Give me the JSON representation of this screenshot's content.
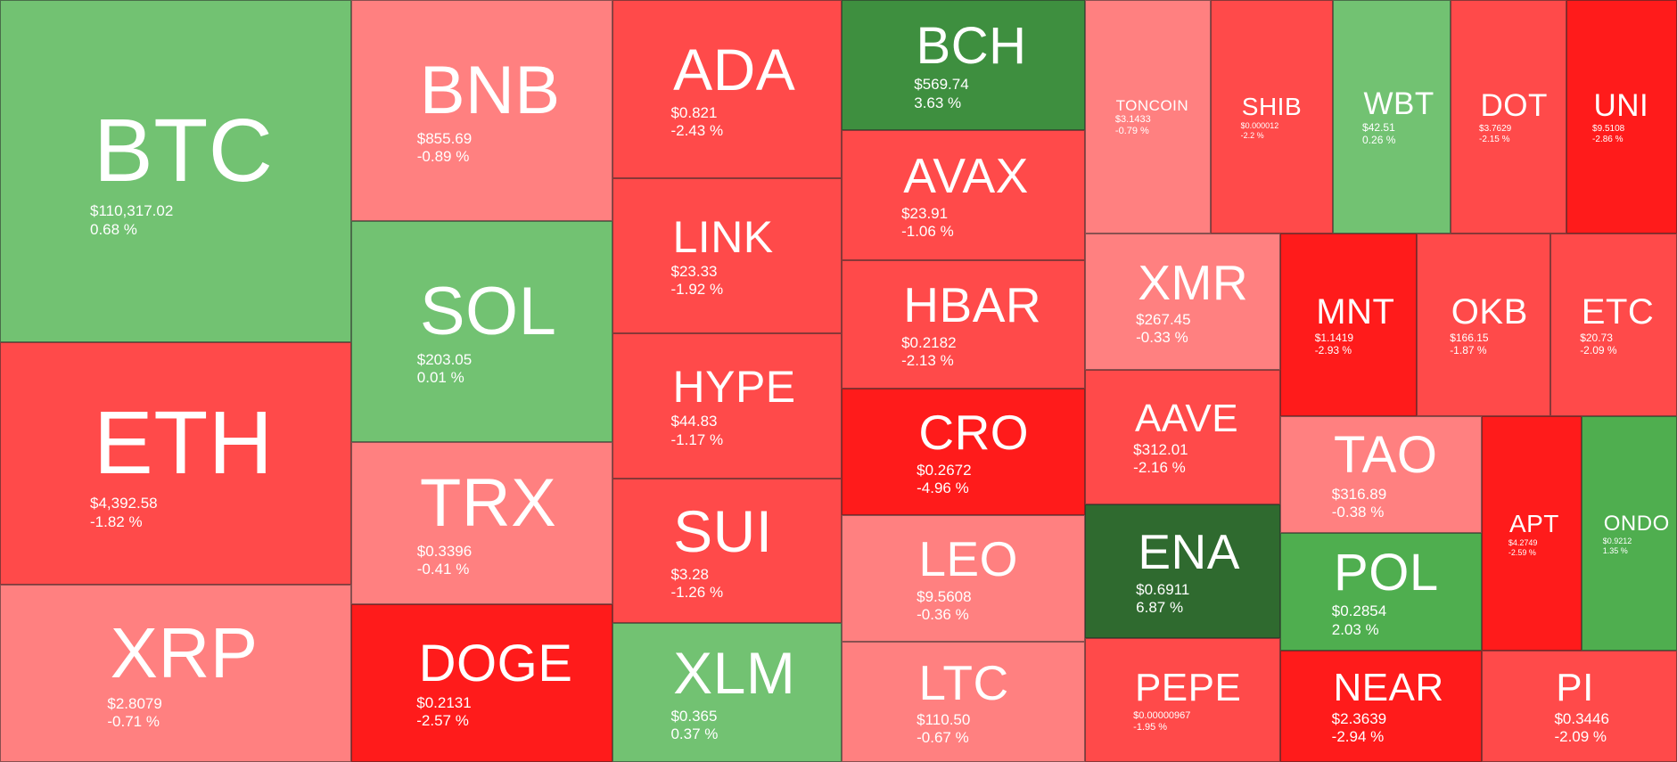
{
  "colors": {
    "up_strong": "#2f6a2f",
    "up_mid": "#3e8f3f",
    "up_light": "#4fae4f",
    "up_pale": "#72c272",
    "down_pale": "#ff8080",
    "down_mid": "#ff4a4a",
    "down_strong": "#ff1b1b"
  },
  "chart_data": {
    "type": "treemap",
    "tiles": [
      {
        "symbol": "BTC",
        "price": "$110,317.02",
        "change": "0.68 %",
        "change_pct": 0.68,
        "color": "#72c272"
      },
      {
        "symbol": "ETH",
        "price": "$4,392.58",
        "change": "-1.82 %",
        "change_pct": -1.82,
        "color": "#ff4a4a"
      },
      {
        "symbol": "XRP",
        "price": "$2.8079",
        "change": "-0.71 %",
        "change_pct": -0.71,
        "color": "#ff8080"
      },
      {
        "symbol": "BNB",
        "price": "$855.69",
        "change": "-0.89 %",
        "change_pct": -0.89,
        "color": "#ff8080"
      },
      {
        "symbol": "SOL",
        "price": "$203.05",
        "change": "0.01 %",
        "change_pct": 0.01,
        "color": "#72c272"
      },
      {
        "symbol": "TRX",
        "price": "$0.3396",
        "change": "-0.41 %",
        "change_pct": -0.41,
        "color": "#ff8080"
      },
      {
        "symbol": "DOGE",
        "price": "$0.2131",
        "change": "-2.57 %",
        "change_pct": -2.57,
        "color": "#ff1b1b"
      },
      {
        "symbol": "ADA",
        "price": "$0.821",
        "change": "-2.43 %",
        "change_pct": -2.43,
        "color": "#ff4a4a"
      },
      {
        "symbol": "LINK",
        "price": "$23.33",
        "change": "-1.92 %",
        "change_pct": -1.92,
        "color": "#ff4a4a"
      },
      {
        "symbol": "HYPE",
        "price": "$44.83",
        "change": "-1.17 %",
        "change_pct": -1.17,
        "color": "#ff4a4a"
      },
      {
        "symbol": "SUI",
        "price": "$3.28",
        "change": "-1.26 %",
        "change_pct": -1.26,
        "color": "#ff4a4a"
      },
      {
        "symbol": "XLM",
        "price": "$0.365",
        "change": "0.37 %",
        "change_pct": 0.37,
        "color": "#72c272"
      },
      {
        "symbol": "BCH",
        "price": "$569.74",
        "change": "3.63 %",
        "change_pct": 3.63,
        "color": "#3e8f3f"
      },
      {
        "symbol": "AVAX",
        "price": "$23.91",
        "change": "-1.06 %",
        "change_pct": -1.06,
        "color": "#ff4a4a"
      },
      {
        "symbol": "HBAR",
        "price": "$0.2182",
        "change": "-2.13 %",
        "change_pct": -2.13,
        "color": "#ff4a4a"
      },
      {
        "symbol": "CRO",
        "price": "$0.2672",
        "change": "-4.96 %",
        "change_pct": -4.96,
        "color": "#ff1b1b"
      },
      {
        "symbol": "LEO",
        "price": "$9.5608",
        "change": "-0.36 %",
        "change_pct": -0.36,
        "color": "#ff8080"
      },
      {
        "symbol": "LTC",
        "price": "$110.50",
        "change": "-0.67 %",
        "change_pct": -0.67,
        "color": "#ff8080"
      },
      {
        "symbol": "TONCOIN",
        "price": "$3.1433",
        "change": "-0.79 %",
        "change_pct": -0.79,
        "color": "#ff8080"
      },
      {
        "symbol": "SHIB",
        "price": "$0.000012",
        "change": "-2.2 %",
        "change_pct": -2.2,
        "color": "#ff4a4a"
      },
      {
        "symbol": "WBT",
        "price": "$42.51",
        "change": "0.26 %",
        "change_pct": 0.26,
        "color": "#72c272"
      },
      {
        "symbol": "DOT",
        "price": "$3.7629",
        "change": "-2.15 %",
        "change_pct": -2.15,
        "color": "#ff4a4a"
      },
      {
        "symbol": "UNI",
        "price": "$9.5108",
        "change": "-2.86 %",
        "change_pct": -2.86,
        "color": "#ff1b1b"
      },
      {
        "symbol": "XMR",
        "price": "$267.45",
        "change": "-0.33 %",
        "change_pct": -0.33,
        "color": "#ff8080"
      },
      {
        "symbol": "MNT",
        "price": "$1.1419",
        "change": "-2.93 %",
        "change_pct": -2.93,
        "color": "#ff1b1b"
      },
      {
        "symbol": "OKB",
        "price": "$166.15",
        "change": "-1.87 %",
        "change_pct": -1.87,
        "color": "#ff4a4a"
      },
      {
        "symbol": "ETC",
        "price": "$20.73",
        "change": "-2.09 %",
        "change_pct": -2.09,
        "color": "#ff4a4a"
      },
      {
        "symbol": "AAVE",
        "price": "$312.01",
        "change": "-2.16 %",
        "change_pct": -2.16,
        "color": "#ff4a4a"
      },
      {
        "symbol": "ENA",
        "price": "$0.6911",
        "change": "6.87 %",
        "change_pct": 6.87,
        "color": "#2f6a2f"
      },
      {
        "symbol": "PEPE",
        "price": "$0.00000967",
        "change": "-1.95 %",
        "change_pct": -1.95,
        "color": "#ff4a4a"
      },
      {
        "symbol": "TAO",
        "price": "$316.89",
        "change": "-0.38 %",
        "change_pct": -0.38,
        "color": "#ff8080"
      },
      {
        "symbol": "POL",
        "price": "$0.2854",
        "change": "2.03 %",
        "change_pct": 2.03,
        "color": "#4fae4f"
      },
      {
        "symbol": "NEAR",
        "price": "$2.3639",
        "change": "-2.94 %",
        "change_pct": -2.94,
        "color": "#ff1b1b"
      },
      {
        "symbol": "APT",
        "price": "$4.2749",
        "change": "-2.59 %",
        "change_pct": -2.59,
        "color": "#ff1b1b"
      },
      {
        "symbol": "ONDO",
        "price": "$0.9212",
        "change": "1.35 %",
        "change_pct": 1.35,
        "color": "#4fae4f"
      },
      {
        "symbol": "PI",
        "price": "$0.3446",
        "change": "-2.09 %",
        "change_pct": -2.09,
        "color": "#ff4a4a"
      }
    ]
  }
}
